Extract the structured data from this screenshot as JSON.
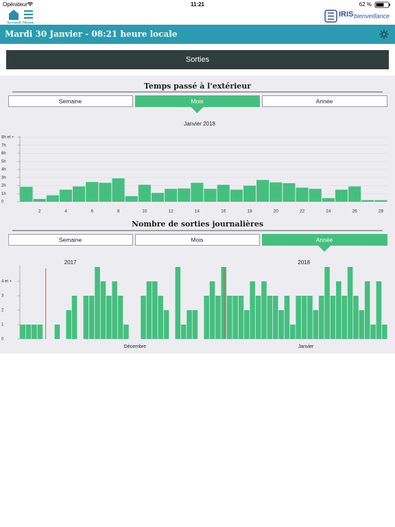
{
  "status_bar": {
    "carrier": "Opérateur",
    "time": "11:21",
    "battery": "62 %"
  },
  "nav": {
    "home": "Accueil",
    "menu": "Menu",
    "brand": "IRIS",
    "brand_sub": "bienveillance"
  },
  "header": {
    "title": "Mardi 30 Janvier - 08:21 heure locale"
  },
  "section_button": "Sorties",
  "chart_data": [
    {
      "type": "bar",
      "title": "Temps passé à l'extérieur",
      "tabs": [
        "Semaine",
        "Mois",
        "Année"
      ],
      "active_tab": "Mois",
      "subtitle": "Janvier 2018",
      "x": [
        1,
        2,
        3,
        4,
        5,
        6,
        7,
        8,
        9,
        10,
        11,
        12,
        13,
        14,
        15,
        16,
        17,
        18,
        19,
        20,
        21,
        22,
        23,
        24,
        25,
        26,
        27,
        28
      ],
      "values": [
        1.85,
        0.35,
        0.8,
        1.5,
        1.9,
        2.45,
        2.35,
        2.9,
        0.7,
        2.1,
        1.1,
        1.6,
        1.65,
        2.35,
        1.6,
        2.1,
        1.5,
        2.0,
        2.7,
        2.4,
        2.3,
        1.75,
        1.6,
        0.45,
        1.5,
        1.9,
        0.2,
        0.2
      ],
      "color": "#45bf7f",
      "xlim": [
        0.5,
        28.5
      ],
      "xticks": [
        2,
        4,
        6,
        8,
        10,
        12,
        14,
        16,
        18,
        20,
        22,
        24,
        26,
        28
      ],
      "ylim": [
        0,
        8
      ],
      "yticks": [
        0,
        {
          "value": 1,
          "label": "1h"
        },
        {
          "value": 2,
          "label": "2h"
        },
        {
          "value": 3,
          "label": "3h"
        },
        {
          "value": 4,
          "label": "4h"
        },
        {
          "value": 5,
          "label": "5h"
        },
        {
          "value": 6,
          "label": "6h"
        },
        {
          "value": 7,
          "label": "7h"
        },
        {
          "value": 8,
          "label": "8h et +"
        }
      ],
      "grid": true
    },
    {
      "type": "bar",
      "title": "Nombre de sorties journalières",
      "tabs": [
        "Semaine",
        "Mois",
        "Année"
      ],
      "active_tab": "Année",
      "groups": [
        {
          "year": "2017",
          "month": "Décembre"
        },
        {
          "year": "2018",
          "month": "Janvier"
        }
      ],
      "values": [
        1,
        1,
        1,
        1,
        0,
        0,
        1,
        0,
        2,
        3,
        0,
        3,
        3,
        5,
        4,
        3,
        4,
        3,
        1,
        0,
        0,
        3,
        4,
        4,
        3,
        2,
        0,
        5,
        1,
        2,
        2,
        0,
        3,
        4,
        3,
        5,
        3,
        3,
        3,
        2,
        4,
        3,
        4,
        3,
        3,
        2,
        3,
        1,
        3,
        3,
        3,
        2,
        3,
        5,
        3,
        4,
        3,
        5,
        3,
        2,
        4,
        1,
        4,
        1
      ],
      "color": "#45bf7f",
      "ylim": [
        0,
        5
      ],
      "yticks": [
        0,
        1,
        2,
        3,
        {
          "value": 4,
          "label": "4 et +"
        }
      ],
      "grid": false
    }
  ]
}
